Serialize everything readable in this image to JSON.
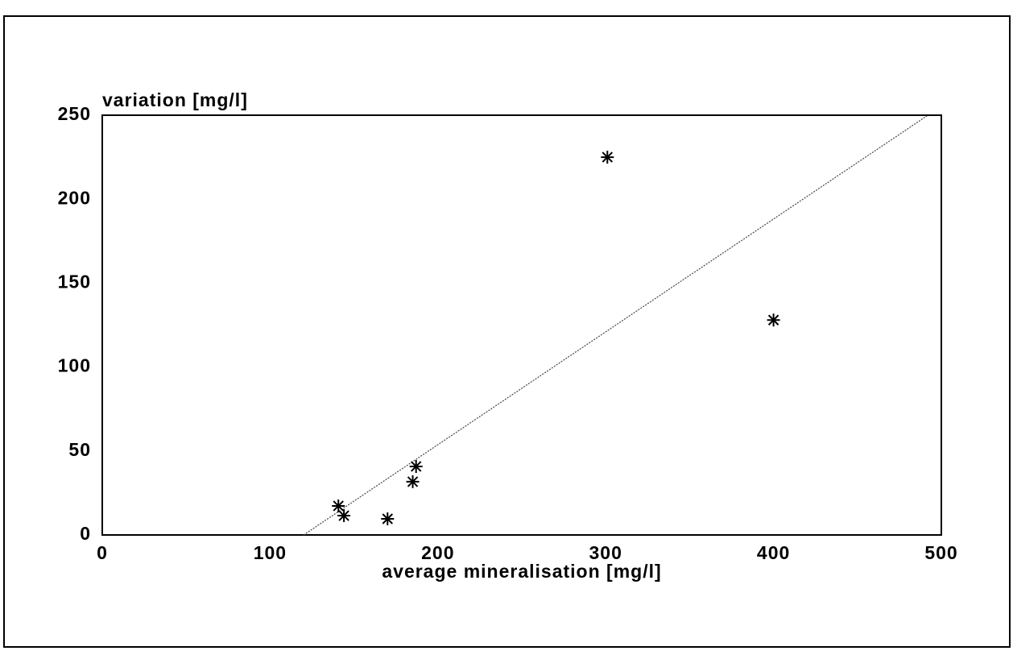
{
  "chart_data": {
    "type": "scatter",
    "xlabel": "average mineralisation [mg/l]",
    "ylabel": "variation [mg/l]",
    "x": [
      140.7,
      144,
      170,
      185,
      187,
      301,
      400
    ],
    "y": [
      17.3,
      11.5,
      9.6,
      31.7,
      40.8,
      225,
      128
    ],
    "color": "#000000",
    "fit_line": {
      "x": [
        120,
        492
      ],
      "y": [
        0,
        250
      ]
    },
    "xlim": [
      0,
      500
    ],
    "xticks": [
      0,
      100,
      200,
      300,
      400,
      500
    ],
    "ylim": [
      0,
      250
    ],
    "yticks": [
      0,
      50,
      100,
      150,
      200,
      250
    ],
    "grid": false
  }
}
